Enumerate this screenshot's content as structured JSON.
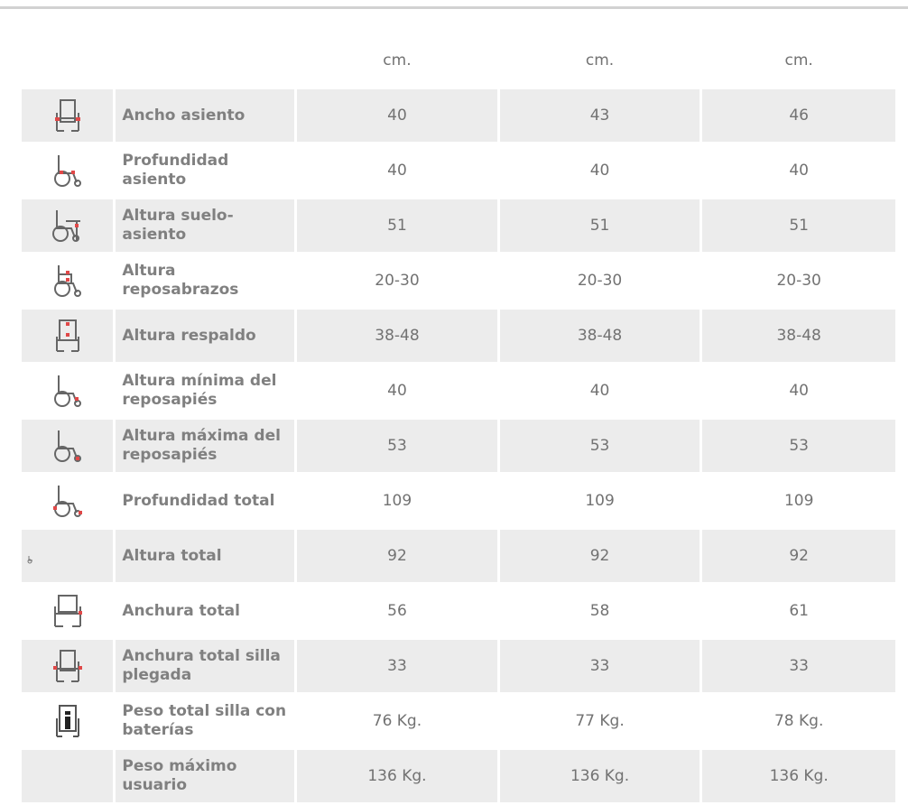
{
  "units": [
    "cm.",
    "cm.",
    "cm."
  ],
  "rows": [
    {
      "label": "Ancho asiento",
      "values": [
        "40",
        "43",
        "46"
      ],
      "icon": "chair-front-seat-width-icon"
    },
    {
      "label": "Profundidad asiento",
      "values": [
        "40",
        "40",
        "40"
      ],
      "icon": "chair-side-seat-depth-icon"
    },
    {
      "label": "Altura suelo-asiento",
      "values": [
        "51",
        "51",
        "51"
      ],
      "icon": "chair-side-seat-height-icon"
    },
    {
      "label": "Altura reposabrazos",
      "values": [
        "20-30",
        "20-30",
        "20-30"
      ],
      "icon": "chair-side-armrest-height-icon"
    },
    {
      "label": "Altura respaldo",
      "values": [
        "38-48",
        "38-48",
        "38-48"
      ],
      "icon": "chair-front-backrest-height-icon"
    },
    {
      "label": "Altura mínima del reposapiés",
      "values": [
        "40",
        "40",
        "40"
      ],
      "icon": "chair-side-footrest-min-icon"
    },
    {
      "label": "Altura máxima del reposapiés",
      "values": [
        "53",
        "53",
        "53"
      ],
      "icon": "chair-side-footrest-max-icon"
    },
    {
      "label": "Profundidad total",
      "values": [
        "109",
        "109",
        "109"
      ],
      "icon": "chair-side-total-depth-icon"
    },
    {
      "label": "Altura total",
      "values": [
        "92",
        "92",
        "92"
      ],
      "icon": "chair-small-total-height-icon"
    },
    {
      "label": "Anchura total",
      "values": [
        "56",
        "58",
        "61"
      ],
      "icon": "chair-front-total-width-icon"
    },
    {
      "label": "Anchura total silla plegada",
      "values": [
        "33",
        "33",
        "33"
      ],
      "icon": "chair-front-folded-width-icon"
    },
    {
      "label": "Peso total silla con baterías",
      "values": [
        "76 Kg.",
        "77 Kg.",
        "78 Kg."
      ],
      "icon": "chair-battery-weight-icon"
    },
    {
      "label": "Peso máximo usuario",
      "values": [
        "136 Kg.",
        "136 Kg.",
        "136 Kg."
      ],
      "icon": ""
    }
  ],
  "colors": {
    "cell_bg": "#ececec",
    "rule": "#d2d2d2",
    "text": "#727272",
    "marker": "#e04848"
  }
}
